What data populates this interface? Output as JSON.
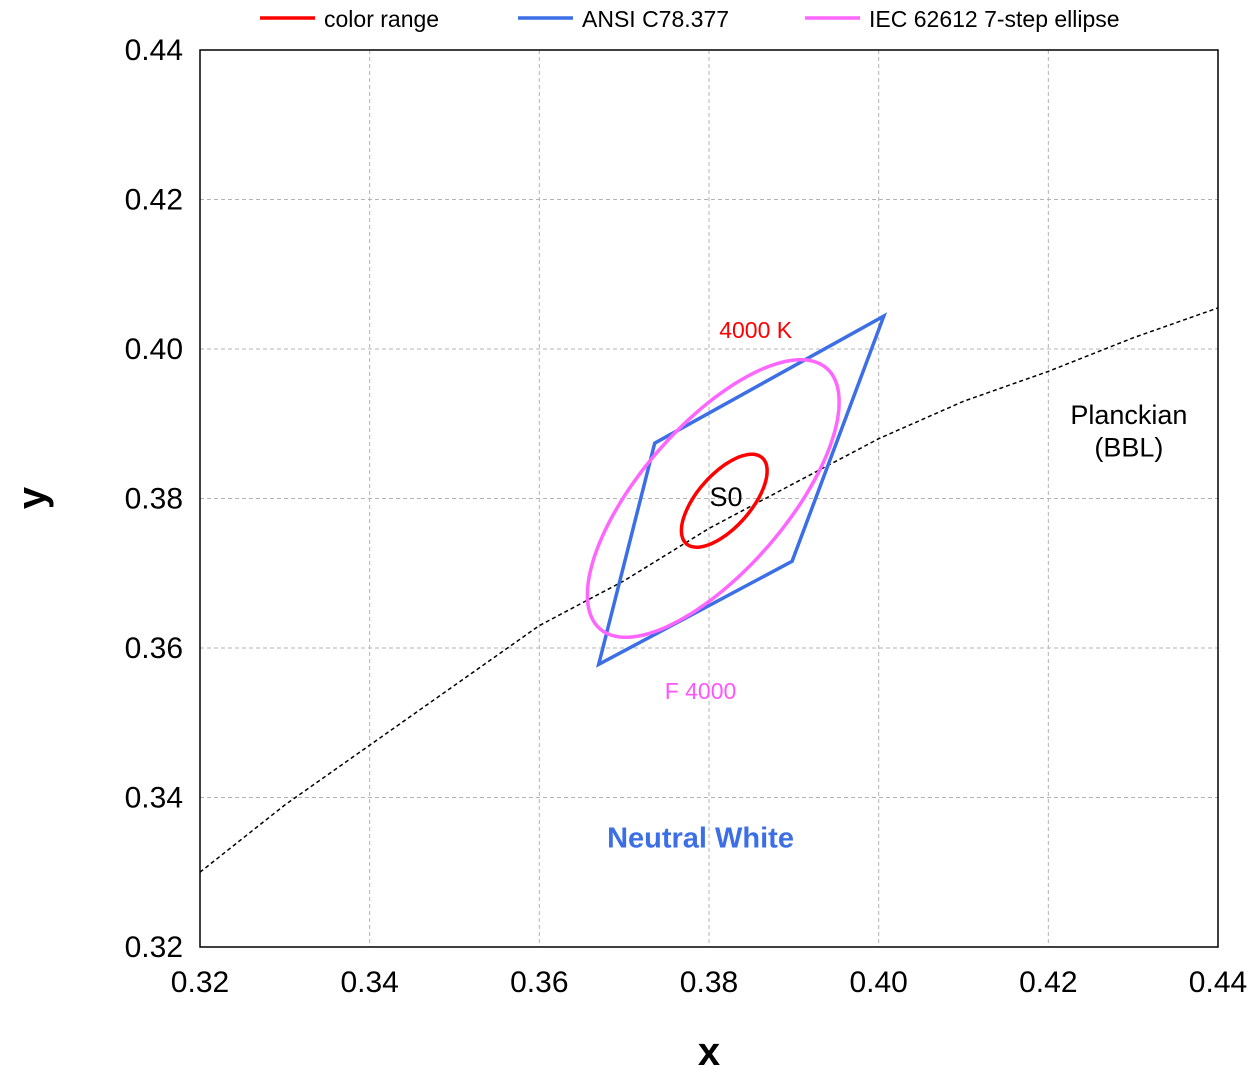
{
  "chart_data": {
    "type": "line",
    "xlabel": "x",
    "ylabel": "y",
    "xlim": [
      0.32,
      0.44
    ],
    "ylim": [
      0.32,
      0.44
    ],
    "xticks": [
      0.32,
      0.34,
      0.36,
      0.38,
      0.4,
      0.42,
      0.44
    ],
    "yticks": [
      0.32,
      0.34,
      0.36,
      0.38,
      0.4,
      0.42,
      0.44
    ],
    "xtick_labels": [
      "0.32",
      "0.34",
      "0.36",
      "0.38",
      "0.40",
      "0.42",
      "0.44"
    ],
    "ytick_labels": [
      "0.32",
      "0.34",
      "0.36",
      "0.38",
      "0.40",
      "0.42",
      "0.44"
    ],
    "grid": true,
    "legend_position": "top",
    "series": [
      {
        "name": "color range",
        "color": "#ff0000",
        "shape": "ellipse",
        "center": [
          0.3818,
          0.3797
        ],
        "semi_axes": [
          0.0073,
          0.0033
        ],
        "rotation_deg": 54
      },
      {
        "name": "ANSI C78.377",
        "color": "#3c6ee6",
        "shape": "polygon",
        "points": [
          [
            0.3736,
            0.3874
          ],
          [
            0.4006,
            0.4044
          ],
          [
            0.3898,
            0.3716
          ],
          [
            0.367,
            0.3578
          ]
        ]
      },
      {
        "name": "IEC 62612 7-step ellipse",
        "color": "#ff66ff",
        "shape": "ellipse",
        "center": [
          0.3805,
          0.38
        ],
        "semi_axes": [
          0.022,
          0.009
        ],
        "rotation_deg": 54
      }
    ],
    "planckian_locus": {
      "x": [
        0.32,
        0.33,
        0.34,
        0.35,
        0.36,
        0.37,
        0.38,
        0.39,
        0.4,
        0.41,
        0.42,
        0.43,
        0.44
      ],
      "y": [
        0.33,
        0.339,
        0.347,
        0.355,
        0.363,
        0.369,
        0.376,
        0.382,
        0.388,
        0.393,
        0.397,
        0.4015,
        0.4055
      ],
      "color": "#000000",
      "style": "dashed"
    },
    "annotations": [
      {
        "text": "4000 K",
        "x": 0.3855,
        "y": 0.4015,
        "color": "#ff0000"
      },
      {
        "text": "S0",
        "x": 0.382,
        "y": 0.379,
        "color": "#000000"
      },
      {
        "text": "F 4000",
        "x": 0.379,
        "y": 0.3532,
        "color": "#ff55ff"
      },
      {
        "text": "Neutral White",
        "x": 0.379,
        "y": 0.3333,
        "color": "#3c6ee6",
        "bold": true
      },
      {
        "text": "Planckian",
        "x": 0.4295,
        "y": 0.39,
        "color": "#000000"
      },
      {
        "text": "(BBL)",
        "x": 0.4295,
        "y": 0.3856,
        "color": "#000000"
      }
    ]
  }
}
